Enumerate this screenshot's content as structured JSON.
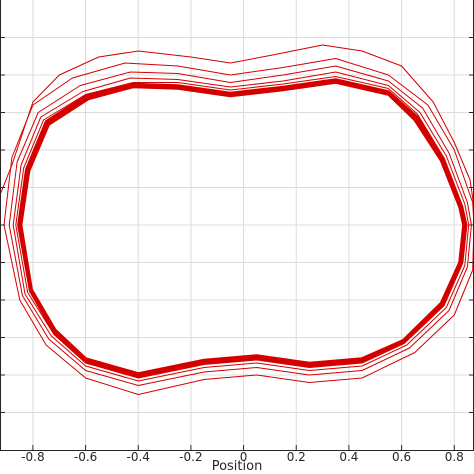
{
  "chart_data": {
    "type": "line",
    "title": "",
    "xlabel": "Position",
    "ylabel": "",
    "xlim": [
      -0.925,
      0.875
    ],
    "ylim": [
      -1.5,
      1.5
    ],
    "x_ticks": [
      -0.8,
      -0.6,
      -0.4,
      -0.2,
      0,
      0.2,
      0.4,
      0.6,
      0.8
    ],
    "x_tick_labels": [
      "-0.8",
      "-0.6",
      "-0.4",
      "-0.2",
      "0",
      "0.2",
      "0.4",
      "0.6",
      "0.8"
    ],
    "y_gridlines": [
      -1.25,
      -1.0,
      -0.75,
      -0.5,
      -0.25,
      0,
      0.25,
      0.5,
      0.75,
      1.0,
      1.25
    ],
    "grid": true,
    "line_color": "#d40000",
    "series": [
      {
        "points": [
          [
            -0.925,
            0.2
          ],
          [
            -0.88,
            0.4
          ],
          [
            -0.8,
            0.82
          ],
          [
            -0.7,
            1.0
          ],
          [
            -0.55,
            1.12
          ],
          [
            -0.4,
            1.16
          ],
          [
            -0.2,
            1.12
          ],
          [
            -0.05,
            1.08
          ],
          [
            0.1,
            1.13
          ],
          [
            0.3,
            1.2
          ],
          [
            0.45,
            1.16
          ],
          [
            0.6,
            1.06
          ],
          [
            0.72,
            0.82
          ],
          [
            0.8,
            0.55
          ],
          [
            0.86,
            0.3
          ],
          [
            0.875,
            0.12
          ]
        ]
      },
      {
        "points": [
          [
            -0.91,
            0.0
          ],
          [
            -0.88,
            0.45
          ],
          [
            -0.8,
            0.8
          ],
          [
            -0.65,
            0.98
          ],
          [
            -0.45,
            1.08
          ],
          [
            -0.25,
            1.06
          ],
          [
            -0.05,
            1.0
          ],
          [
            0.15,
            1.05
          ],
          [
            0.35,
            1.11
          ],
          [
            0.55,
            1.0
          ],
          [
            0.7,
            0.8
          ],
          [
            0.8,
            0.5
          ],
          [
            0.87,
            0.15
          ],
          [
            0.875,
            0.0
          ],
          [
            0.87,
            -0.3
          ],
          [
            0.8,
            -0.6
          ],
          [
            0.65,
            -0.85
          ],
          [
            0.45,
            -1.02
          ],
          [
            0.25,
            -1.05
          ],
          [
            0.05,
            -1.0
          ],
          [
            -0.15,
            -1.03
          ],
          [
            -0.4,
            -1.13
          ],
          [
            -0.6,
            -1.02
          ],
          [
            -0.75,
            -0.8
          ],
          [
            -0.85,
            -0.5
          ],
          [
            -0.91,
            0.0
          ]
        ]
      },
      {
        "points": [
          [
            -0.89,
            0.0
          ],
          [
            -0.86,
            0.42
          ],
          [
            -0.78,
            0.75
          ],
          [
            -0.62,
            0.93
          ],
          [
            -0.43,
            1.02
          ],
          [
            -0.25,
            1.01
          ],
          [
            -0.05,
            0.95
          ],
          [
            0.15,
            1.0
          ],
          [
            0.35,
            1.06
          ],
          [
            0.55,
            0.96
          ],
          [
            0.68,
            0.78
          ],
          [
            0.78,
            0.48
          ],
          [
            0.85,
            0.15
          ],
          [
            0.865,
            0.0
          ],
          [
            0.85,
            -0.28
          ],
          [
            0.78,
            -0.57
          ],
          [
            0.63,
            -0.82
          ],
          [
            0.45,
            -0.97
          ],
          [
            0.25,
            -1.0
          ],
          [
            0.05,
            -0.95
          ],
          [
            -0.15,
            -0.98
          ],
          [
            -0.4,
            -1.07
          ],
          [
            -0.6,
            -0.97
          ],
          [
            -0.74,
            -0.76
          ],
          [
            -0.84,
            -0.47
          ],
          [
            -0.89,
            0.0
          ]
        ]
      },
      {
        "points": [
          [
            -0.875,
            0.0
          ],
          [
            -0.845,
            0.4
          ],
          [
            -0.77,
            0.72
          ],
          [
            -0.61,
            0.89
          ],
          [
            -0.43,
            0.98
          ],
          [
            -0.25,
            0.97
          ],
          [
            -0.05,
            0.92
          ],
          [
            0.15,
            0.96
          ],
          [
            0.35,
            1.02
          ],
          [
            0.55,
            0.93
          ],
          [
            0.67,
            0.75
          ],
          [
            0.77,
            0.46
          ],
          [
            0.84,
            0.14
          ],
          [
            0.855,
            0.0
          ],
          [
            0.84,
            -0.27
          ],
          [
            0.77,
            -0.55
          ],
          [
            0.62,
            -0.8
          ],
          [
            0.45,
            -0.94
          ],
          [
            0.25,
            -0.97
          ],
          [
            0.05,
            -0.92
          ],
          [
            -0.15,
            -0.95
          ],
          [
            -0.4,
            -1.04
          ],
          [
            -0.6,
            -0.94
          ],
          [
            -0.73,
            -0.74
          ],
          [
            -0.83,
            -0.46
          ],
          [
            -0.875,
            0.0
          ]
        ]
      },
      {
        "points": [
          [
            -0.865,
            0.0
          ],
          [
            -0.835,
            0.38
          ],
          [
            -0.76,
            0.7
          ],
          [
            -0.6,
            0.87
          ],
          [
            -0.42,
            0.95
          ],
          [
            -0.25,
            0.95
          ],
          [
            -0.05,
            0.9
          ],
          [
            0.15,
            0.94
          ],
          [
            0.35,
            0.99
          ],
          [
            0.55,
            0.91
          ],
          [
            0.66,
            0.74
          ],
          [
            0.76,
            0.45
          ],
          [
            0.83,
            0.13
          ],
          [
            0.848,
            0.0
          ],
          [
            0.83,
            -0.26
          ],
          [
            0.76,
            -0.54
          ],
          [
            0.61,
            -0.79
          ],
          [
            0.45,
            -0.92
          ],
          [
            0.25,
            -0.95
          ],
          [
            0.05,
            -0.9
          ],
          [
            -0.15,
            -0.93
          ],
          [
            -0.4,
            -1.02
          ],
          [
            -0.6,
            -0.92
          ],
          [
            -0.72,
            -0.73
          ],
          [
            -0.82,
            -0.45
          ],
          [
            -0.865,
            0.0
          ]
        ]
      },
      {
        "points": [
          [
            -0.855,
            0.0
          ],
          [
            -0.825,
            0.37
          ],
          [
            -0.75,
            0.69
          ],
          [
            -0.6,
            0.86
          ],
          [
            -0.42,
            0.94
          ],
          [
            -0.25,
            0.93
          ],
          [
            -0.05,
            0.88
          ],
          [
            0.15,
            0.92
          ],
          [
            0.35,
            0.97
          ],
          [
            0.55,
            0.89
          ],
          [
            0.66,
            0.72
          ],
          [
            0.76,
            0.44
          ],
          [
            0.83,
            0.12
          ],
          [
            0.845,
            0.0
          ],
          [
            0.83,
            -0.25
          ],
          [
            0.76,
            -0.53
          ],
          [
            0.61,
            -0.78
          ],
          [
            0.45,
            -0.91
          ],
          [
            0.25,
            -0.94
          ],
          [
            0.05,
            -0.89
          ],
          [
            -0.15,
            -0.92
          ],
          [
            -0.4,
            -1.01
          ],
          [
            -0.6,
            -0.91
          ],
          [
            -0.72,
            -0.72
          ],
          [
            -0.81,
            -0.44
          ],
          [
            -0.855,
            0.0
          ]
        ]
      },
      {
        "points": [
          [
            -0.85,
            0.0
          ],
          [
            -0.82,
            0.36
          ],
          [
            -0.745,
            0.68
          ],
          [
            -0.59,
            0.85
          ],
          [
            -0.42,
            0.93
          ],
          [
            -0.25,
            0.92
          ],
          [
            -0.05,
            0.87
          ],
          [
            0.15,
            0.91
          ],
          [
            0.35,
            0.96
          ],
          [
            0.55,
            0.88
          ],
          [
            0.655,
            0.71
          ],
          [
            0.755,
            0.43
          ],
          [
            0.825,
            0.12
          ],
          [
            0.84,
            0.0
          ],
          [
            0.825,
            -0.25
          ],
          [
            0.755,
            -0.52
          ],
          [
            0.61,
            -0.77
          ],
          [
            0.45,
            -0.9
          ],
          [
            0.25,
            -0.93
          ],
          [
            0.05,
            -0.88
          ],
          [
            -0.15,
            -0.91
          ],
          [
            -0.4,
            -1.0
          ],
          [
            -0.6,
            -0.9
          ],
          [
            -0.72,
            -0.71
          ],
          [
            -0.81,
            -0.44
          ],
          [
            -0.85,
            0.0
          ]
        ]
      },
      {
        "points": [
          [
            -0.845,
            0.0
          ],
          [
            -0.815,
            0.36
          ],
          [
            -0.74,
            0.67
          ],
          [
            -0.59,
            0.84
          ],
          [
            -0.42,
            0.92
          ],
          [
            -0.25,
            0.91
          ],
          [
            -0.05,
            0.86
          ],
          [
            0.15,
            0.9
          ],
          [
            0.35,
            0.95
          ],
          [
            0.55,
            0.87
          ],
          [
            0.65,
            0.7
          ],
          [
            0.75,
            0.43
          ],
          [
            0.82,
            0.12
          ],
          [
            0.835,
            0.0
          ],
          [
            0.82,
            -0.25
          ],
          [
            0.75,
            -0.52
          ],
          [
            0.605,
            -0.77
          ],
          [
            0.45,
            -0.89
          ],
          [
            0.25,
            -0.92
          ],
          [
            0.05,
            -0.87
          ],
          [
            -0.15,
            -0.9
          ],
          [
            -0.4,
            -0.99
          ],
          [
            -0.6,
            -0.89
          ],
          [
            -0.715,
            -0.7
          ],
          [
            -0.805,
            -0.43
          ],
          [
            -0.845,
            0.0
          ]
        ]
      }
    ]
  }
}
